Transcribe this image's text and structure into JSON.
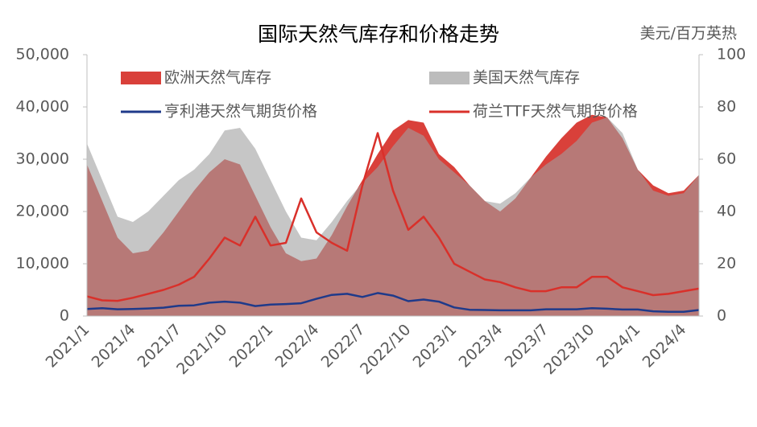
{
  "chart_data": {
    "type": "combo",
    "title": "国际天然气库存和价格走势",
    "y2_label": "美元/百万英热",
    "categories": [
      "2021/1",
      null,
      null,
      "2021/4",
      null,
      null,
      "2021/7",
      null,
      null,
      "2021/10",
      null,
      null,
      "2022/1",
      null,
      null,
      "2022/4",
      null,
      null,
      "2022/7",
      null,
      null,
      "2022/10",
      null,
      null,
      "2023/1",
      null,
      null,
      "2023/4",
      null,
      null,
      "2023/7",
      null,
      null,
      "2023/10",
      null,
      null,
      "2024/1",
      null,
      null,
      "2024/4",
      null
    ],
    "series": [
      {
        "name": "欧洲天然气库存",
        "type": "area",
        "color": "#d9403a",
        "axis": "y",
        "values": [
          29000,
          22000,
          15000,
          12000,
          12500,
          16000,
          20000,
          24000,
          27500,
          30000,
          29000,
          23000,
          17000,
          12000,
          10500,
          11000,
          15500,
          21000,
          26000,
          31000,
          35500,
          37500,
          37000,
          31000,
          28500,
          25000,
          22000,
          20000,
          22500,
          26500,
          30500,
          34000,
          37000,
          38500,
          38000,
          34000,
          28000,
          25000,
          23500,
          24000,
          27000
        ]
      },
      {
        "name": "美国天然气库存",
        "type": "area",
        "color": "#a0a0a0",
        "axis": "y",
        "values": [
          33000,
          26000,
          19000,
          18000,
          20000,
          23000,
          26000,
          28000,
          31000,
          35500,
          36000,
          32000,
          26000,
          20000,
          15000,
          14500,
          18000,
          22000,
          25500,
          28500,
          32500,
          36000,
          34500,
          30000,
          27500,
          25000,
          22000,
          21500,
          23500,
          26500,
          29000,
          31000,
          33500,
          37000,
          38000,
          35000,
          28000,
          24000,
          23000,
          23500,
          27000
        ]
      },
      {
        "name": "亨利港天然气期货价格",
        "type": "line",
        "color": "#1f3a8a",
        "axis": "y2",
        "values": [
          2.7,
          3.0,
          2.6,
          2.7,
          2.9,
          3.2,
          3.9,
          4.1,
          5.1,
          5.5,
          5.1,
          3.8,
          4.4,
          4.6,
          4.9,
          6.6,
          8.1,
          8.5,
          7.3,
          8.8,
          7.8,
          5.7,
          6.3,
          5.5,
          3.3,
          2.4,
          2.3,
          2.2,
          2.2,
          2.2,
          2.6,
          2.6,
          2.6,
          3.0,
          2.8,
          2.5,
          2.5,
          1.8,
          1.6,
          1.6,
          2.3
        ]
      },
      {
        "name": "荷兰TTF天然气期货价格",
        "type": "line",
        "color": "#d9302a",
        "axis": "y2",
        "values": [
          7.5,
          6.0,
          5.8,
          7.0,
          8.5,
          10,
          12,
          15,
          22,
          30,
          27,
          38,
          27,
          28,
          45,
          32,
          28,
          25,
          50,
          70,
          48,
          33,
          38,
          30,
          20,
          17,
          14,
          13,
          11,
          9.5,
          9.5,
          11,
          11,
          15,
          15,
          11,
          9.5,
          8,
          8.5,
          9.5,
          10.5
        ]
      }
    ],
    "ylim": [
      0,
      50000
    ],
    "yticks": [
      0,
      {
        "value": 10000,
        "label": "10,000"
      },
      {
        "value": 20000,
        "label": "20,000"
      },
      {
        "value": 30000,
        "label": "30,000"
      },
      {
        "value": 40000,
        "label": "40,000"
      },
      {
        "value": 50000,
        "label": "50,000"
      }
    ],
    "y2lim": [
      0,
      100
    ],
    "y2ticks": [
      0,
      20,
      40,
      60,
      80,
      100
    ],
    "legend": "top"
  }
}
